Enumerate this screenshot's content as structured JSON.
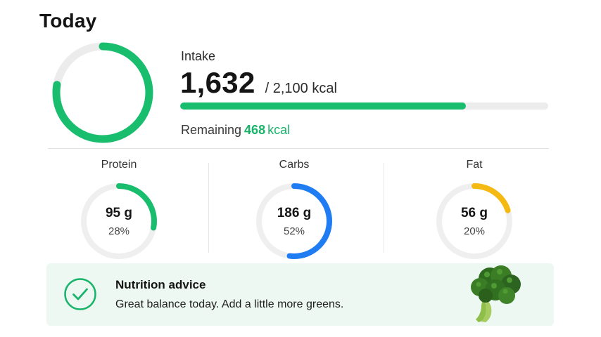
{
  "header": {
    "title": "Today"
  },
  "intake": {
    "label": "Intake",
    "value": "1,632",
    "goal_text": "/ 2,100 kcal",
    "progress_fraction": 0.777,
    "remaining_label": "Remaining",
    "remaining_value": "468",
    "remaining_unit": "kcal",
    "ring_fraction": 0.777,
    "accent_color": "#18be6e",
    "track_color": "#ececec"
  },
  "macros": [
    {
      "label": "Protein",
      "grams": "95 g",
      "percent": "28%",
      "fraction": 0.28,
      "color": "#18be6e"
    },
    {
      "label": "Carbs",
      "grams": "186 g",
      "percent": "52%",
      "fraction": 0.52,
      "color": "#1f7cf2"
    },
    {
      "label": "Fat",
      "grams": "56 g",
      "percent": "20%",
      "fraction": 0.2,
      "color": "#f5b914"
    }
  ],
  "advice": {
    "title": "Nutrition advice",
    "text": "Great balance today. Add a little more greens.",
    "icon": "check-circle-icon",
    "image": "broccoli"
  }
}
